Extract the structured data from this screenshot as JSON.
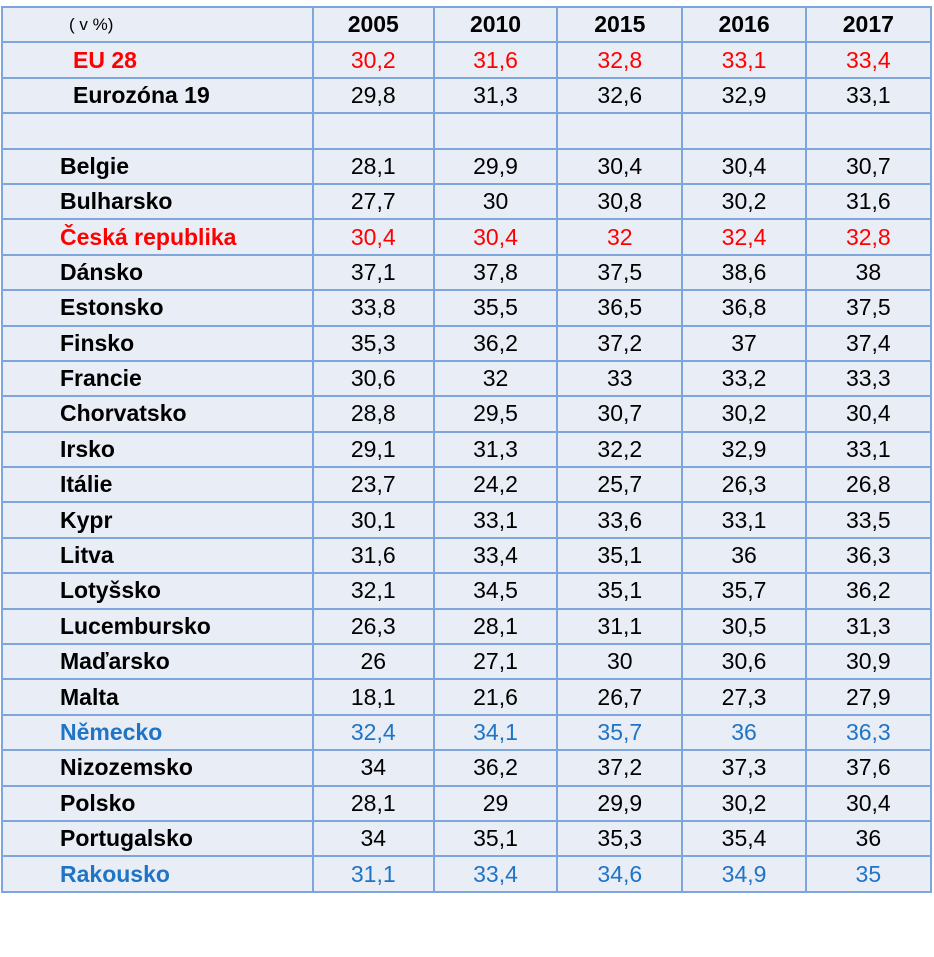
{
  "table": {
    "unit_label": "( v %)",
    "years": [
      "2005",
      "2010",
      "2015",
      "2016",
      "2017"
    ],
    "colors": {
      "highlight_red": "#ff0000",
      "highlight_blue": "#1f74c6",
      "cell_fill": "#e9edf6",
      "border": "#7ea6da"
    },
    "rows": [
      {
        "label": "EU 28",
        "values": [
          "30,2",
          "31,6",
          "32,8",
          "33,1",
          "33,4"
        ],
        "highlight": "red"
      },
      {
        "label": "Eurozóna 19",
        "values": [
          "29,8",
          "31,3",
          "32,6",
          "32,9",
          "33,1"
        ],
        "highlight": "none"
      },
      {
        "label": "",
        "values": [
          "",
          "",
          "",
          "",
          ""
        ],
        "highlight": "none"
      },
      {
        "label": "Belgie",
        "values": [
          "28,1",
          "29,9",
          "30,4",
          "30,4",
          "30,7"
        ],
        "highlight": "none"
      },
      {
        "label": "Bulharsko",
        "values": [
          "27,7",
          "30",
          "30,8",
          "30,2",
          "31,6"
        ],
        "highlight": "none"
      },
      {
        "label": "Česká republika",
        "values": [
          "30,4",
          "30,4",
          "32",
          "32,4",
          "32,8"
        ],
        "highlight": "red"
      },
      {
        "label": "Dánsko",
        "values": [
          "37,1",
          "37,8",
          "37,5",
          "38,6",
          "38"
        ],
        "highlight": "none"
      },
      {
        "label": "Estonsko",
        "values": [
          "33,8",
          "35,5",
          "36,5",
          "36,8",
          "37,5"
        ],
        "highlight": "none"
      },
      {
        "label": "Finsko",
        "values": [
          "35,3",
          "36,2",
          "37,2",
          "37",
          "37,4"
        ],
        "highlight": "none"
      },
      {
        "label": "Francie",
        "values": [
          "30,6",
          "32",
          "33",
          "33,2",
          "33,3"
        ],
        "highlight": "none"
      },
      {
        "label": "Chorvatsko",
        "values": [
          "28,8",
          "29,5",
          "30,7",
          "30,2",
          "30,4"
        ],
        "highlight": "none"
      },
      {
        "label": "Irsko",
        "values": [
          "29,1",
          "31,3",
          "32,2",
          "32,9",
          "33,1"
        ],
        "highlight": "none"
      },
      {
        "label": "Itálie",
        "values": [
          "23,7",
          "24,2",
          "25,7",
          "26,3",
          "26,8"
        ],
        "highlight": "none"
      },
      {
        "label": "Kypr",
        "values": [
          "30,1",
          "33,1",
          "33,6",
          "33,1",
          "33,5"
        ],
        "highlight": "none"
      },
      {
        "label": "Litva",
        "values": [
          "31,6",
          "33,4",
          "35,1",
          "36",
          "36,3"
        ],
        "highlight": "none"
      },
      {
        "label": "Lotyšsko",
        "values": [
          "32,1",
          "34,5",
          "35,1",
          "35,7",
          "36,2"
        ],
        "highlight": "none"
      },
      {
        "label": "Lucembursko",
        "values": [
          "26,3",
          "28,1",
          "31,1",
          "30,5",
          "31,3"
        ],
        "highlight": "none"
      },
      {
        "label": "Maďarsko",
        "values": [
          "26",
          "27,1",
          "30",
          "30,6",
          "30,9"
        ],
        "highlight": "none"
      },
      {
        "label": "Malta",
        "values": [
          "18,1",
          "21,6",
          "26,7",
          "27,3",
          "27,9"
        ],
        "highlight": "none"
      },
      {
        "label": "Německo",
        "values": [
          "32,4",
          "34,1",
          "35,7",
          "36",
          "36,3"
        ],
        "highlight": "blue"
      },
      {
        "label": "Nizozemsko",
        "values": [
          "34",
          "36,2",
          "37,2",
          "37,3",
          "37,6"
        ],
        "highlight": "none"
      },
      {
        "label": "Polsko",
        "values": [
          "28,1",
          "29",
          "29,9",
          "30,2",
          "30,4"
        ],
        "highlight": "none"
      },
      {
        "label": "Portugalsko",
        "values": [
          "34",
          "35,1",
          "35,3",
          "35,4",
          "36"
        ],
        "highlight": "none"
      },
      {
        "label": "Rakousko",
        "values": [
          "31,1",
          "33,4",
          "34,6",
          "34,9",
          "35"
        ],
        "highlight": "blue"
      }
    ]
  }
}
